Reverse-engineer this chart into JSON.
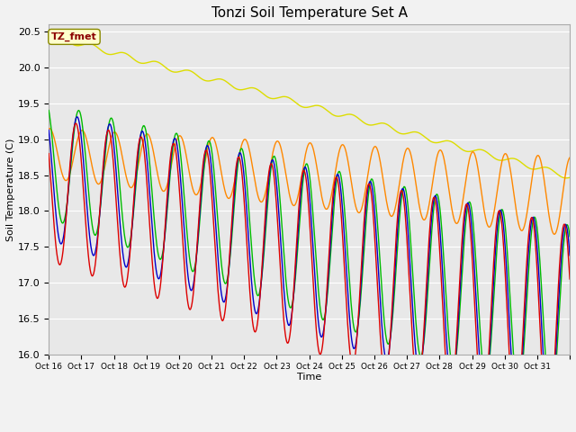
{
  "title": "Tonzi Soil Temperature Set A",
  "xlabel": "Time",
  "ylabel": "Soil Temperature (C)",
  "annotation": "TZ_fmet",
  "ylim": [
    16.0,
    20.6
  ],
  "colors": {
    "2cm": "#dd0000",
    "4cm": "#0000cc",
    "8cm": "#00bb00",
    "16cm": "#ff8800",
    "32cm": "#dddd00"
  },
  "xtick_labels": [
    "Oct 16",
    "Oct 17",
    "Oct 18",
    "Oct 19",
    "Oct 20",
    "Oct 21",
    "Oct 22",
    "Oct 23",
    "Oct 24",
    "Oct 25",
    "Oct 26",
    "Oct 27",
    "Oct 28",
    "Oct 29",
    "Oct 30",
    "Oct 31"
  ],
  "ytick_values": [
    16.0,
    16.5,
    17.0,
    17.5,
    18.0,
    18.5,
    19.0,
    19.5,
    20.0,
    20.5
  ],
  "axes_facecolor": "#e8e8e8",
  "title_fontsize": 11,
  "legend_fontsize": 8,
  "line_width": 1.0
}
